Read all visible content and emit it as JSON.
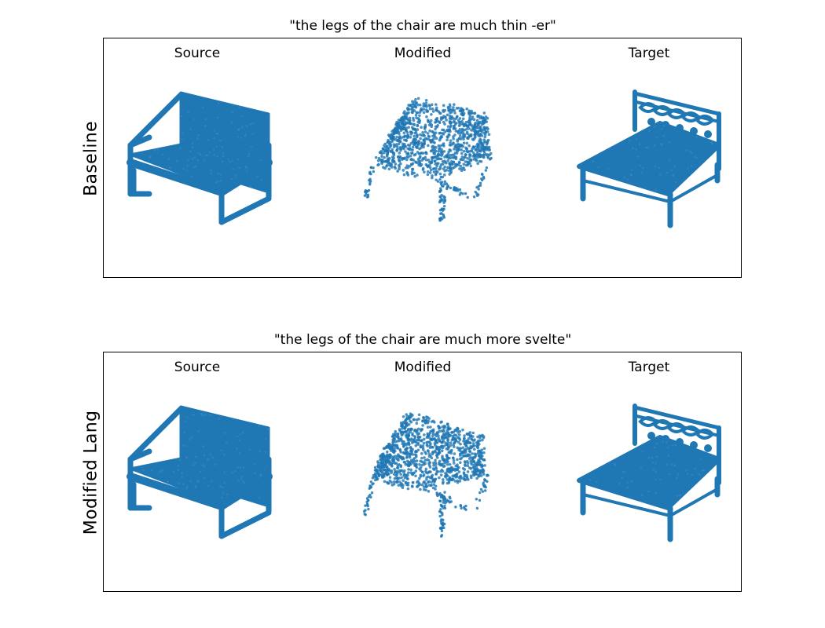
{
  "point_color": "#1f77b4",
  "panels": [
    {
      "row_label": "Baseline",
      "title": "\"the legs of the chair are much thin -er\"",
      "columns": [
        "Source",
        "Modified",
        "Target"
      ]
    },
    {
      "row_label": "Modified Lang",
      "title": "\"the legs of the chair are much more svelte\"",
      "columns": [
        "Source",
        "Modified",
        "Target"
      ]
    }
  ]
}
